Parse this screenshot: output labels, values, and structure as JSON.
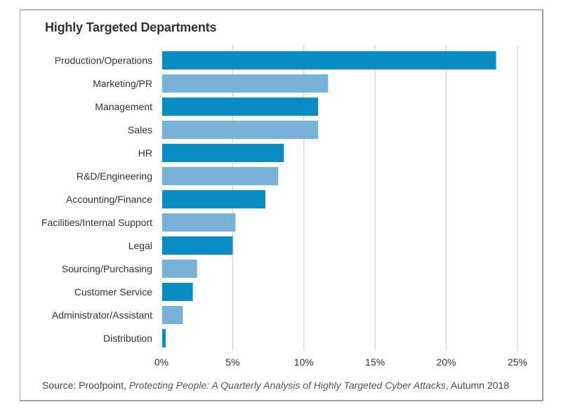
{
  "colors": {
    "dark_bar": "#0A8DC5",
    "light_bar": "#78B3D7",
    "gridline": "#c8c8c8",
    "text": "#333333"
  },
  "chart_data": {
    "type": "bar",
    "orientation": "horizontal",
    "title": "Highly Targeted Departments",
    "xlabel": "",
    "ylabel": "",
    "categories": [
      "Production/Operations",
      "Marketing/PR",
      "Management",
      "Sales",
      "HR",
      "R&D/Engineering",
      "Accounting/Finance",
      "Facilities/Internal Support",
      "Legal",
      "Sourcing/Purchasing",
      "Customer Service",
      "Administrator/Assistant",
      "Distribution"
    ],
    "values": [
      23.5,
      11.7,
      11.0,
      11.0,
      8.6,
      8.2,
      7.3,
      5.2,
      5.0,
      2.5,
      2.2,
      1.5,
      0.3
    ],
    "value_unit": "%",
    "xlim": [
      0,
      25
    ],
    "xticks": [
      0,
      5,
      10,
      15,
      20,
      25
    ],
    "xtick_labels": [
      "0%",
      "5%",
      "10%",
      "15%",
      "20%",
      "25%"
    ],
    "grid": "vertical",
    "legend": "none",
    "bar_color_pattern": [
      "dark",
      "light"
    ]
  },
  "source": {
    "prefix": "Source: Proofpoint, ",
    "publication": "Protecting People: A Quarterly Analysis of Highly Targeted Cyber Attacks",
    "suffix": ", Autumn 2018"
  }
}
